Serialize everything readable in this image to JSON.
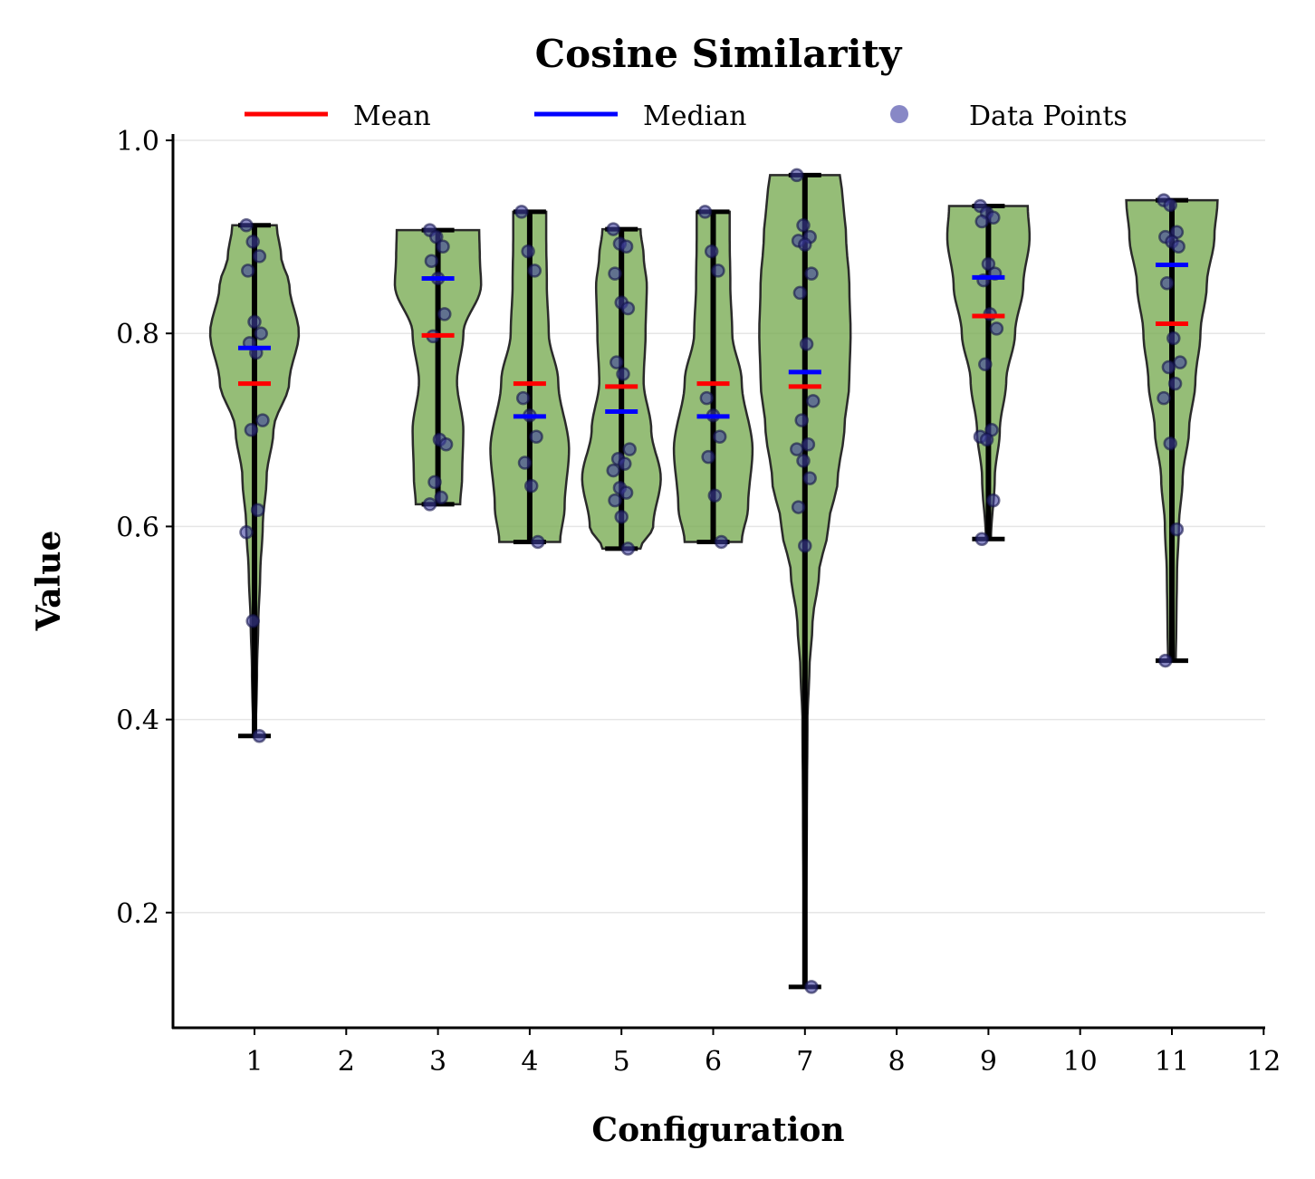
{
  "chart_data": {
    "type": "violin",
    "title": "Cosine Similarity",
    "xlabel": "Configuration",
    "ylabel": "Value",
    "xlim": [
      0.1,
      12
    ],
    "ylim": [
      0.08,
      1.0
    ],
    "x_ticks": [
      "1",
      "2",
      "3",
      "4",
      "5",
      "6",
      "7",
      "8",
      "9",
      "10",
      "11",
      "12"
    ],
    "y_ticks": [
      "0.2",
      "0.4",
      "0.6",
      "0.8",
      "1.0"
    ],
    "grid": "horizontal",
    "legend": {
      "placement": "top-center",
      "entries": [
        {
          "label": "Mean",
          "kind": "line",
          "color": "#ff0000"
        },
        {
          "label": "Median",
          "kind": "line",
          "color": "#0000ff"
        },
        {
          "label": "Data Points",
          "kind": "point",
          "color": "#7b7bc0"
        }
      ]
    },
    "colors": {
      "violin_fill": "#7aad55",
      "violin_edge": "#2a2a2a",
      "whisker": "#000000",
      "mean": "#ff0000",
      "median": "#0000ff",
      "point_fill": "#4040a0",
      "point_edge": "#12124a"
    },
    "series": [
      {
        "config": 1,
        "min": 0.383,
        "max": 0.912,
        "mean": 0.748,
        "median": 0.785,
        "points": [
          0.912,
          0.895,
          0.88,
          0.865,
          0.812,
          0.8,
          0.79,
          0.78,
          0.71,
          0.7,
          0.617,
          0.594,
          0.502,
          0.383
        ],
        "shape": [
          [
            0.383,
            0.02
          ],
          [
            0.45,
            0.04
          ],
          [
            0.5,
            0.06
          ],
          [
            0.55,
            0.09
          ],
          [
            0.6,
            0.13
          ],
          [
            0.65,
            0.19
          ],
          [
            0.7,
            0.3
          ],
          [
            0.75,
            0.55
          ],
          [
            0.8,
            0.7
          ],
          [
            0.85,
            0.55
          ],
          [
            0.88,
            0.42
          ],
          [
            0.912,
            0.35
          ]
        ]
      },
      {
        "config": 3,
        "min": 0.623,
        "max": 0.907,
        "mean": 0.798,
        "median": 0.857,
        "points": [
          0.907,
          0.9,
          0.89,
          0.875,
          0.857,
          0.82,
          0.797,
          0.69,
          0.685,
          0.646,
          0.63,
          0.623
        ],
        "shape": [
          [
            0.623,
            0.35
          ],
          [
            0.65,
            0.38
          ],
          [
            0.7,
            0.4
          ],
          [
            0.75,
            0.3
          ],
          [
            0.8,
            0.4
          ],
          [
            0.85,
            0.68
          ],
          [
            0.88,
            0.66
          ],
          [
            0.907,
            0.65
          ]
        ]
      },
      {
        "config": 4,
        "min": 0.584,
        "max": 0.926,
        "mean": 0.748,
        "median": 0.714,
        "points": [
          0.926,
          0.885,
          0.865,
          0.733,
          0.715,
          0.693,
          0.666,
          0.642,
          0.584
        ],
        "shape": [
          [
            0.584,
            0.48
          ],
          [
            0.62,
            0.55
          ],
          [
            0.68,
            0.62
          ],
          [
            0.75,
            0.45
          ],
          [
            0.8,
            0.3
          ],
          [
            0.85,
            0.27
          ],
          [
            0.9,
            0.26
          ],
          [
            0.926,
            0.26
          ]
        ]
      },
      {
        "config": 5,
        "min": 0.577,
        "max": 0.908,
        "mean": 0.745,
        "median": 0.719,
        "points": [
          0.908,
          0.893,
          0.89,
          0.862,
          0.832,
          0.826,
          0.77,
          0.758,
          0.68,
          0.67,
          0.665,
          0.658,
          0.64,
          0.635,
          0.627,
          0.61,
          0.577
        ],
        "shape": [
          [
            0.577,
            0.3
          ],
          [
            0.6,
            0.5
          ],
          [
            0.65,
            0.62
          ],
          [
            0.7,
            0.47
          ],
          [
            0.75,
            0.35
          ],
          [
            0.8,
            0.38
          ],
          [
            0.85,
            0.4
          ],
          [
            0.88,
            0.35
          ],
          [
            0.908,
            0.3
          ]
        ]
      },
      {
        "config": 6,
        "min": 0.584,
        "max": 0.926,
        "mean": 0.748,
        "median": 0.714,
        "points": [
          0.926,
          0.885,
          0.865,
          0.733,
          0.715,
          0.693,
          0.672,
          0.632,
          0.584
        ],
        "shape": [
          [
            0.584,
            0.45
          ],
          [
            0.62,
            0.55
          ],
          [
            0.68,
            0.62
          ],
          [
            0.75,
            0.45
          ],
          [
            0.8,
            0.3
          ],
          [
            0.85,
            0.27
          ],
          [
            0.9,
            0.26
          ],
          [
            0.926,
            0.26
          ]
        ]
      },
      {
        "config": 7,
        "min": 0.123,
        "max": 0.964,
        "mean": 0.745,
        "median": 0.76,
        "points": [
          0.964,
          0.912,
          0.9,
          0.896,
          0.892,
          0.862,
          0.842,
          0.789,
          0.73,
          0.71,
          0.685,
          0.68,
          0.668,
          0.65,
          0.62,
          0.58,
          0.123
        ],
        "shape": [
          [
            0.123,
            0.02
          ],
          [
            0.2,
            0.02
          ],
          [
            0.3,
            0.03
          ],
          [
            0.4,
            0.04
          ],
          [
            0.45,
            0.07
          ],
          [
            0.5,
            0.12
          ],
          [
            0.55,
            0.22
          ],
          [
            0.6,
            0.37
          ],
          [
            0.65,
            0.52
          ],
          [
            0.7,
            0.62
          ],
          [
            0.75,
            0.7
          ],
          [
            0.8,
            0.72
          ],
          [
            0.85,
            0.7
          ],
          [
            0.9,
            0.65
          ],
          [
            0.94,
            0.6
          ],
          [
            0.964,
            0.55
          ]
        ]
      },
      {
        "config": 9,
        "min": 0.587,
        "max": 0.932,
        "mean": 0.818,
        "median": 0.858,
        "points": [
          0.932,
          0.925,
          0.92,
          0.916,
          0.872,
          0.862,
          0.855,
          0.82,
          0.805,
          0.768,
          0.7,
          0.693,
          0.69,
          0.627,
          0.587
        ],
        "shape": [
          [
            0.587,
            0.04
          ],
          [
            0.65,
            0.1
          ],
          [
            0.7,
            0.18
          ],
          [
            0.75,
            0.28
          ],
          [
            0.8,
            0.42
          ],
          [
            0.85,
            0.55
          ],
          [
            0.9,
            0.65
          ],
          [
            0.932,
            0.62
          ]
        ]
      },
      {
        "config": 11,
        "min": 0.461,
        "max": 0.938,
        "mean": 0.81,
        "median": 0.871,
        "points": [
          0.938,
          0.933,
          0.905,
          0.9,
          0.895,
          0.89,
          0.852,
          0.795,
          0.77,
          0.765,
          0.748,
          0.733,
          0.686,
          0.597,
          0.461
        ],
        "shape": [
          [
            0.461,
            0.06
          ],
          [
            0.5,
            0.07
          ],
          [
            0.55,
            0.08
          ],
          [
            0.6,
            0.11
          ],
          [
            0.65,
            0.17
          ],
          [
            0.7,
            0.27
          ],
          [
            0.75,
            0.37
          ],
          [
            0.8,
            0.45
          ],
          [
            0.85,
            0.55
          ],
          [
            0.9,
            0.67
          ],
          [
            0.938,
            0.72
          ]
        ]
      }
    ]
  }
}
